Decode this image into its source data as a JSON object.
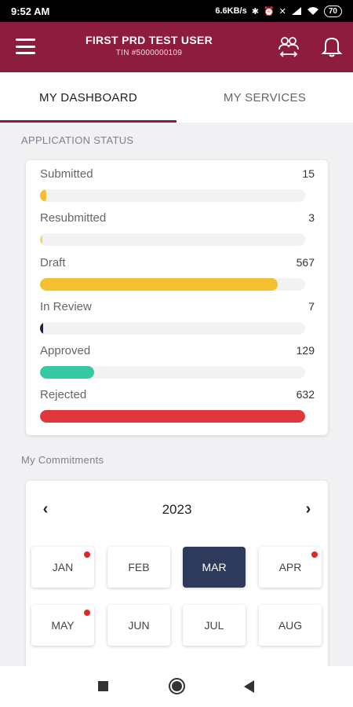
{
  "status_bar": {
    "time": "9:52 AM",
    "network_speed": "6.6KB/s",
    "icons": [
      "bluetooth-icon",
      "alarm-icon",
      "mute-icon",
      "signal-icon",
      "wifi-icon"
    ],
    "battery": "70"
  },
  "header": {
    "user_name": "FIRST PRD TEST USER",
    "tin": "TIN #5000000109",
    "background": "#8e1c3f",
    "icons": [
      "menu-icon",
      "switch-users-icon",
      "bell-icon"
    ]
  },
  "tabs": [
    {
      "label": "MY DASHBOARD",
      "active": true
    },
    {
      "label": "MY SERVICES",
      "active": false
    }
  ],
  "application_status": {
    "title": "APPLICATION STATUS",
    "max": 632,
    "items": [
      {
        "label": "Submitted",
        "count": 15,
        "color": "#f5bf32"
      },
      {
        "label": "Resubmitted",
        "count": 3,
        "color": "#f5d76e"
      },
      {
        "label": "Draft",
        "count": 567,
        "color": "#f5bf32"
      },
      {
        "label": "In Review",
        "count": 7,
        "color": "#1c2341"
      },
      {
        "label": "Approved",
        "count": 129,
        "color": "#35c9a4"
      },
      {
        "label": "Rejected",
        "count": 632,
        "color": "#e0373d"
      }
    ]
  },
  "commitments": {
    "title": "My Commitments",
    "year": "2023",
    "prev_icon": "chevron-left-icon",
    "next_icon": "chevron-right-icon",
    "months": [
      {
        "label": "JAN",
        "dot": true,
        "selected": false
      },
      {
        "label": "FEB",
        "dot": false,
        "selected": false
      },
      {
        "label": "MAR",
        "dot": false,
        "selected": true
      },
      {
        "label": "APR",
        "dot": true,
        "selected": false
      },
      {
        "label": "MAY",
        "dot": true,
        "selected": false
      },
      {
        "label": "JUN",
        "dot": false,
        "selected": false
      },
      {
        "label": "JUL",
        "dot": false,
        "selected": false
      },
      {
        "label": "AUG",
        "dot": false,
        "selected": false
      }
    ]
  },
  "nav_bar": {
    "icons": [
      "recents-square-icon",
      "home-circle-icon",
      "back-triangle-icon"
    ]
  }
}
